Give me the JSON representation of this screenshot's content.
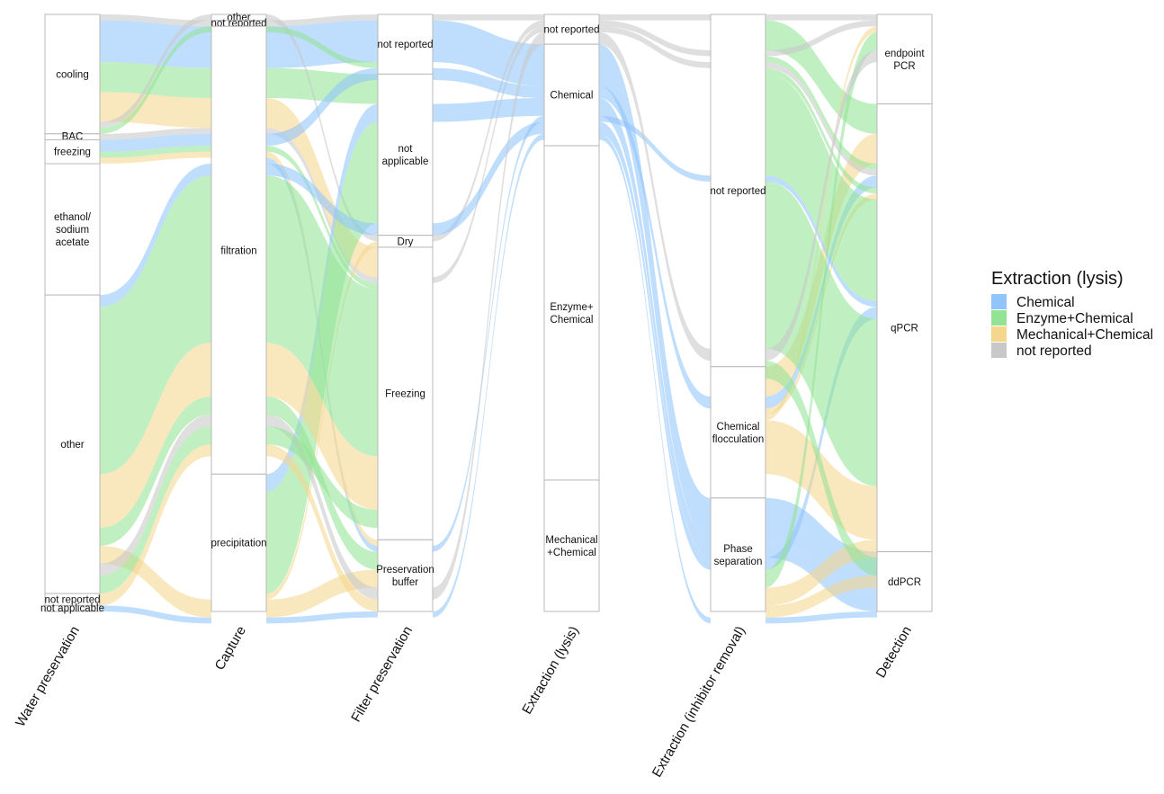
{
  "chart_data": {
    "type": "alluvial",
    "axes": [
      {
        "name": "Water preservation",
        "strata": [
          {
            "label": "cooling",
            "value": 20
          },
          {
            "label": "BAC",
            "value": 1
          },
          {
            "label": "freezing",
            "value": 4
          },
          {
            "label": "ethanol/\nsodium\nacetate",
            "value": 22
          },
          {
            "label": "other",
            "value": 50
          },
          {
            "label": "not reported",
            "value": 2
          },
          {
            "label": "not applicable",
            "value": 1
          }
        ]
      },
      {
        "name": "Capture",
        "strata": [
          {
            "label": "other",
            "value": 1
          },
          {
            "label": "not reported",
            "value": 1
          },
          {
            "label": "filtration",
            "value": 75
          },
          {
            "label": "precipitation",
            "value": 23
          }
        ]
      },
      {
        "name": "Filter preservation",
        "strata": [
          {
            "label": "not reported",
            "value": 10
          },
          {
            "label": "not\napplicable",
            "value": 27
          },
          {
            "label": "Dry",
            "value": 2
          },
          {
            "label": "Freezing",
            "value": 49
          },
          {
            "label": "Preservation\nbuffer",
            "value": 12
          }
        ]
      },
      {
        "name": "Extraction (lysis)",
        "strata": [
          {
            "label": "not reported",
            "value": 5
          },
          {
            "label": "Chemical",
            "value": 17
          },
          {
            "label": "Enzyme+\nChemical",
            "value": 56
          },
          {
            "label": "Mechanical\n+Chemical",
            "value": 22
          }
        ]
      },
      {
        "name": "Extraction (inhibitor removal)",
        "strata": [
          {
            "label": "not reported",
            "value": 59
          },
          {
            "label": "Chemical\nflocculation",
            "value": 22
          },
          {
            "label": "Phase\nseparation",
            "value": 19
          }
        ]
      },
      {
        "name": "Detection",
        "strata": [
          {
            "label": "endpoint\nPCR",
            "value": 15
          },
          {
            "label": "qPCR",
            "value": 75
          },
          {
            "label": "ddPCR",
            "value": 10
          }
        ]
      }
    ],
    "fill_by": "Extraction (lysis)",
    "legend": {
      "title": "Extraction (lysis)",
      "position": "right",
      "items": [
        {
          "label": "Chemical",
          "color": "#90C4FB"
        },
        {
          "label": "Enzyme+Chemical",
          "color": "#93E394"
        },
        {
          "label": "Mechanical+Chemical",
          "color": "#F5D68D"
        },
        {
          "label": "not reported",
          "color": "#C8C8C8"
        }
      ]
    },
    "flows": [
      {
        "path": [
          "cooling",
          "not reported",
          "not reported",
          "not reported",
          "not reported",
          "endpoint PCR"
        ],
        "lysis": "not reported",
        "value": 1
      },
      {
        "path": [
          "cooling",
          "filtration",
          "not reported",
          "Chemical",
          "Phase separation",
          "ddPCR"
        ],
        "lysis": "Chemical",
        "value": 7
      },
      {
        "path": [
          "cooling",
          "filtration",
          "not applicable",
          "Enzyme+Chemical",
          "not reported",
          "qPCR"
        ],
        "lysis": "Enzyme+Chemical",
        "value": 5
      },
      {
        "path": [
          "cooling",
          "filtration",
          "Freezing",
          "Mechanical+Chemical",
          "Chemical flocculation",
          "qPCR"
        ],
        "lysis": "Mechanical+Chemical",
        "value": 5
      },
      {
        "path": [
          "cooling",
          "other",
          "Dry",
          "not reported",
          "not reported",
          "endpoint PCR"
        ],
        "lysis": "not reported",
        "value": 1
      },
      {
        "path": [
          "cooling",
          "not reported",
          "not reported",
          "Enzyme+Chemical",
          "not reported",
          "qPCR"
        ],
        "lysis": "Enzyme+Chemical",
        "value": 1
      },
      {
        "path": [
          "BAC",
          "filtration",
          "Freezing",
          "not reported",
          "not reported",
          "qPCR"
        ],
        "lysis": "not reported",
        "value": 1
      },
      {
        "path": [
          "freezing",
          "filtration",
          "not reported",
          "Chemical",
          "Chemical flocculation",
          "qPCR"
        ],
        "lysis": "Chemical",
        "value": 2
      },
      {
        "path": [
          "freezing",
          "filtration",
          "Freezing",
          "Enzyme+Chemical",
          "not reported",
          "qPCR"
        ],
        "lysis": "Enzyme+Chemical",
        "value": 1
      },
      {
        "path": [
          "freezing",
          "filtration",
          "Preservation buffer",
          "Mechanical+Chemical",
          "Chemical flocculation",
          "qPCR"
        ],
        "lysis": "Mechanical+Chemical",
        "value": 1
      },
      {
        "path": [
          "ethanol/sodium acetate",
          "precipitation",
          "not applicable",
          "Chemical",
          "Phase separation",
          "ddPCR"
        ],
        "lysis": "Chemical",
        "value": 3
      },
      {
        "path": [
          "ethanol/sodium acetate",
          "precipitation",
          "not applicable",
          "Enzyme+Chemical",
          "not reported",
          "qPCR"
        ],
        "lysis": "Enzyme+Chemical",
        "value": 17
      },
      {
        "path": [
          "ethanol/sodium acetate",
          "precipitation",
          "Dry",
          "Mechanical+Chemical",
          "Chemical flocculation",
          "endpoint PCR"
        ],
        "lysis": "Mechanical+Chemical",
        "value": 1
      },
      {
        "path": [
          "ethanol/sodium acetate",
          "filtration",
          "Preservation buffer",
          "Chemical",
          "not reported",
          "qPCR"
        ],
        "lysis": "Chemical",
        "value": 1
      },
      {
        "path": [
          "other",
          "filtration",
          "not applicable",
          "Chemical",
          "Phase separation",
          "qPCR"
        ],
        "lysis": "Chemical",
        "value": 2
      },
      {
        "path": [
          "other",
          "filtration",
          "Freezing",
          "Enzyme+Chemical",
          "not reported",
          "qPCR"
        ],
        "lysis": "Enzyme+Chemical",
        "value": 28
      },
      {
        "path": [
          "other",
          "filtration",
          "Freezing",
          "Mechanical+Chemical",
          "Chemical flocculation",
          "qPCR"
        ],
        "lysis": "Mechanical+Chemical",
        "value": 9
      },
      {
        "path": [
          "other",
          "filtration",
          "Preservation buffer",
          "Enzyme+Chemical",
          "Phase separation",
          "endpoint PCR"
        ],
        "lysis": "Enzyme+Chemical",
        "value": 3
      },
      {
        "path": [
          "other",
          "precipitation",
          "Preservation buffer",
          "Mechanical+Chemical",
          "Phase separation",
          "qPCR"
        ],
        "lysis": "Mechanical+Chemical",
        "value": 3
      },
      {
        "path": [
          "other",
          "filtration",
          "Preservation buffer",
          "not reported",
          "not reported",
          "endpoint PCR"
        ],
        "lysis": "not reported",
        "value": 2
      },
      {
        "path": [
          "other",
          "filtration",
          "Freezing",
          "Enzyme+Chemical",
          "not reported",
          "qPCR"
        ],
        "lysis": "Enzyme+Chemical",
        "value": 3
      },
      {
        "path": [
          "not reported",
          "filtration",
          "Preservation buffer",
          "Mechanical+Chemical",
          "Phase separation",
          "qPCR"
        ],
        "lysis": "Mechanical+Chemical",
        "value": 2
      },
      {
        "path": [
          "not applicable",
          "precipitation",
          "Preservation buffer",
          "Chemical",
          "Phase separation",
          "ddPCR"
        ],
        "lysis": "Chemical",
        "value": 1
      }
    ]
  }
}
